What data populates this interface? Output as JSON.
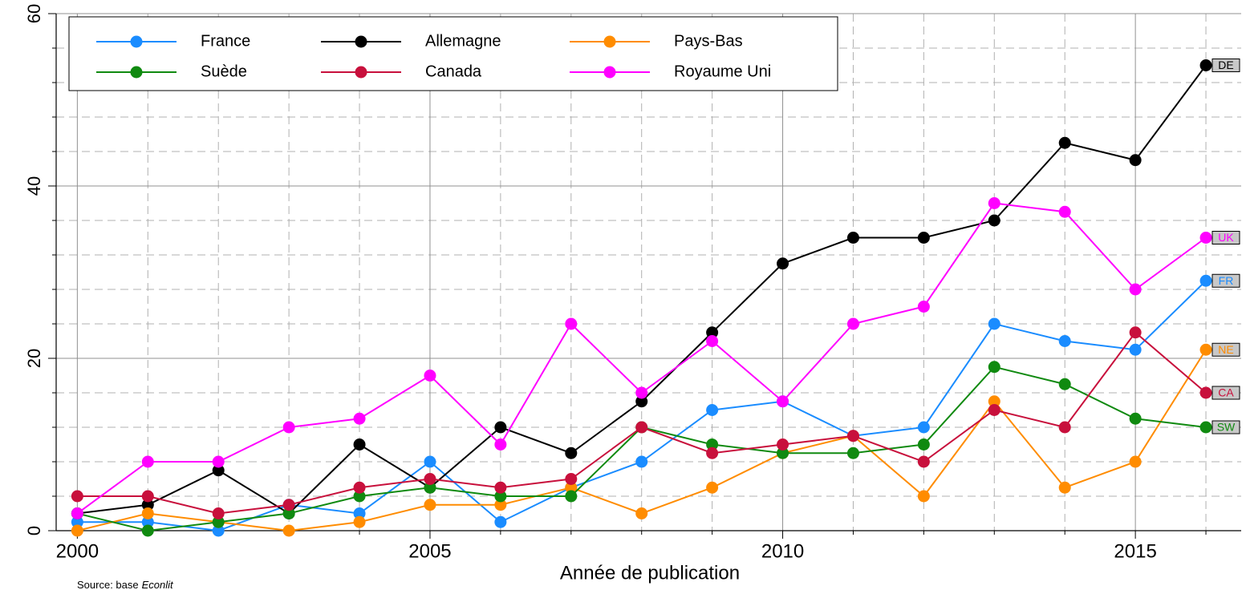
{
  "chart_data": {
    "type": "line",
    "xlabel": "Année de publication",
    "source_prefix": "Source: base",
    "source_name": "Econlit",
    "xlim": [
      1999.7,
      2016.5
    ],
    "ylim": [
      0,
      60
    ],
    "xticks": [
      2000,
      2005,
      2010,
      2015
    ],
    "yticks": [
      0,
      20,
      40,
      60
    ],
    "xminorticks": [
      2001,
      2002,
      2003,
      2004,
      2006,
      2007,
      2008,
      2009,
      2011,
      2012,
      2013,
      2014,
      2016
    ],
    "yminorticks": [
      4,
      8,
      12,
      16,
      24,
      28,
      32,
      36,
      44,
      48,
      52,
      56
    ],
    "grid": true,
    "legend_position": "top-left",
    "legend_columns": 3,
    "x": [
      2000,
      2001,
      2002,
      2003,
      2004,
      2005,
      2006,
      2007,
      2008,
      2009,
      2010,
      2011,
      2012,
      2013,
      2014,
      2015,
      2016
    ],
    "series": [
      {
        "name": "France",
        "end_label": "FR",
        "color": "#1a8cff",
        "values": [
          1,
          1,
          0,
          3,
          2,
          8,
          1,
          5,
          8,
          14,
          15,
          11,
          12,
          24,
          22,
          21,
          29
        ]
      },
      {
        "name": "Allemagne",
        "end_label": "DE",
        "color": "#000000",
        "values": [
          2,
          3,
          7,
          2,
          10,
          5,
          12,
          9,
          15,
          23,
          31,
          34,
          34,
          36,
          45,
          43,
          54
        ]
      },
      {
        "name": "Pays-Bas",
        "end_label": "NE",
        "color": "#ff8c00",
        "values": [
          0,
          2,
          1,
          0,
          1,
          3,
          3,
          5,
          2,
          5,
          9,
          11,
          4,
          15,
          5,
          8,
          21
        ]
      },
      {
        "name": "Suède",
        "end_label": "SW",
        "color": "#108a10",
        "values": [
          2,
          0,
          1,
          2,
          4,
          5,
          4,
          4,
          12,
          10,
          9,
          9,
          10,
          19,
          17,
          13,
          12
        ]
      },
      {
        "name": "Canada",
        "end_label": "CA",
        "color": "#c8103c",
        "values": [
          4,
          4,
          2,
          3,
          5,
          6,
          5,
          6,
          12,
          9,
          10,
          11,
          8,
          14,
          12,
          23,
          16
        ]
      },
      {
        "name": "Royaume Uni",
        "end_label": "UK",
        "color": "#ff00ff",
        "values": [
          2,
          8,
          8,
          12,
          13,
          18,
          10,
          24,
          16,
          22,
          15,
          24,
          26,
          38,
          37,
          28,
          34
        ]
      }
    ]
  }
}
